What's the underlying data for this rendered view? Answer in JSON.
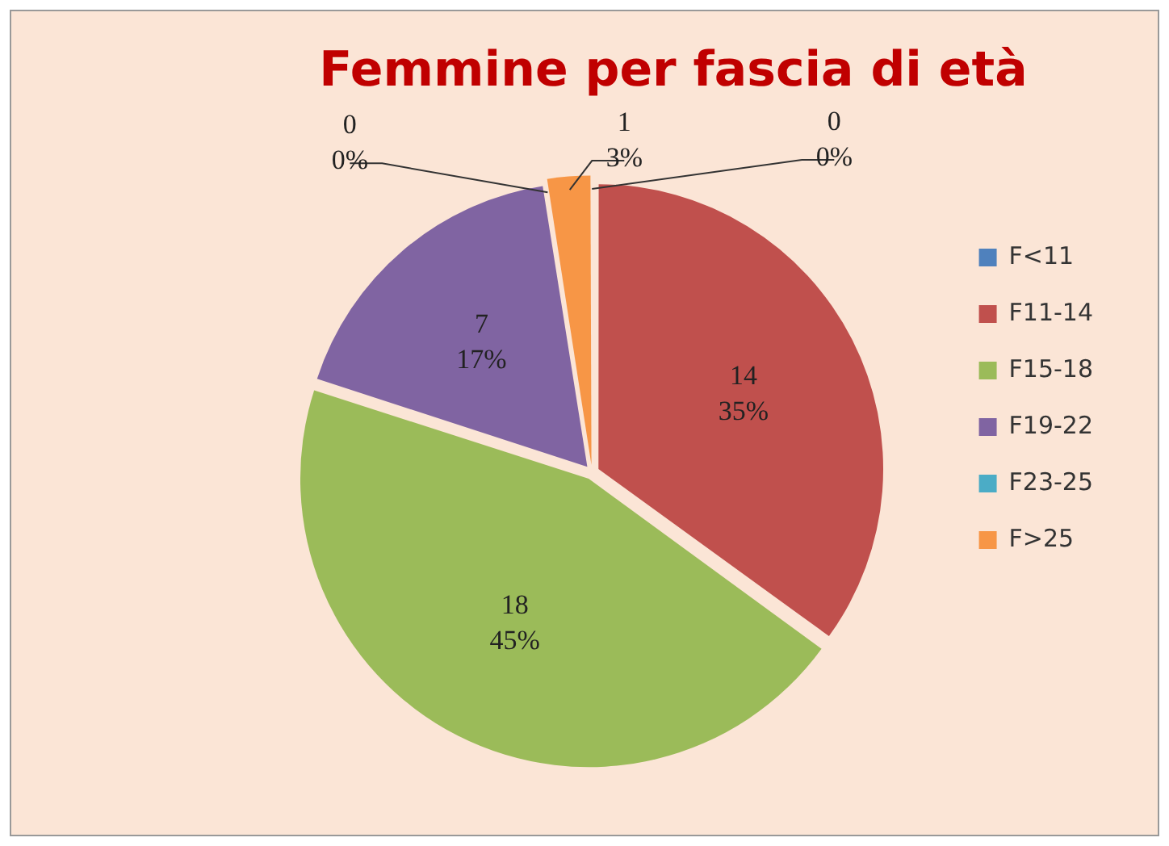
{
  "chart_data": {
    "type": "pie",
    "title": "Femmine per fascia di età",
    "categories": [
      "F<11",
      "F11-14",
      "F15-18",
      "F19-22",
      "F23-25",
      "F>25"
    ],
    "values": [
      0,
      14,
      18,
      7,
      0,
      1
    ],
    "colors": [
      "#4f81bd",
      "#c0504d",
      "#9bbb59",
      "#8064a2",
      "#4bacc6",
      "#f79646"
    ],
    "value_labels": [
      "0\n0%",
      "14\n35%",
      "18\n45%",
      "7\n17%",
      "0\n0%",
      "1\n3%"
    ],
    "legend": "right"
  }
}
